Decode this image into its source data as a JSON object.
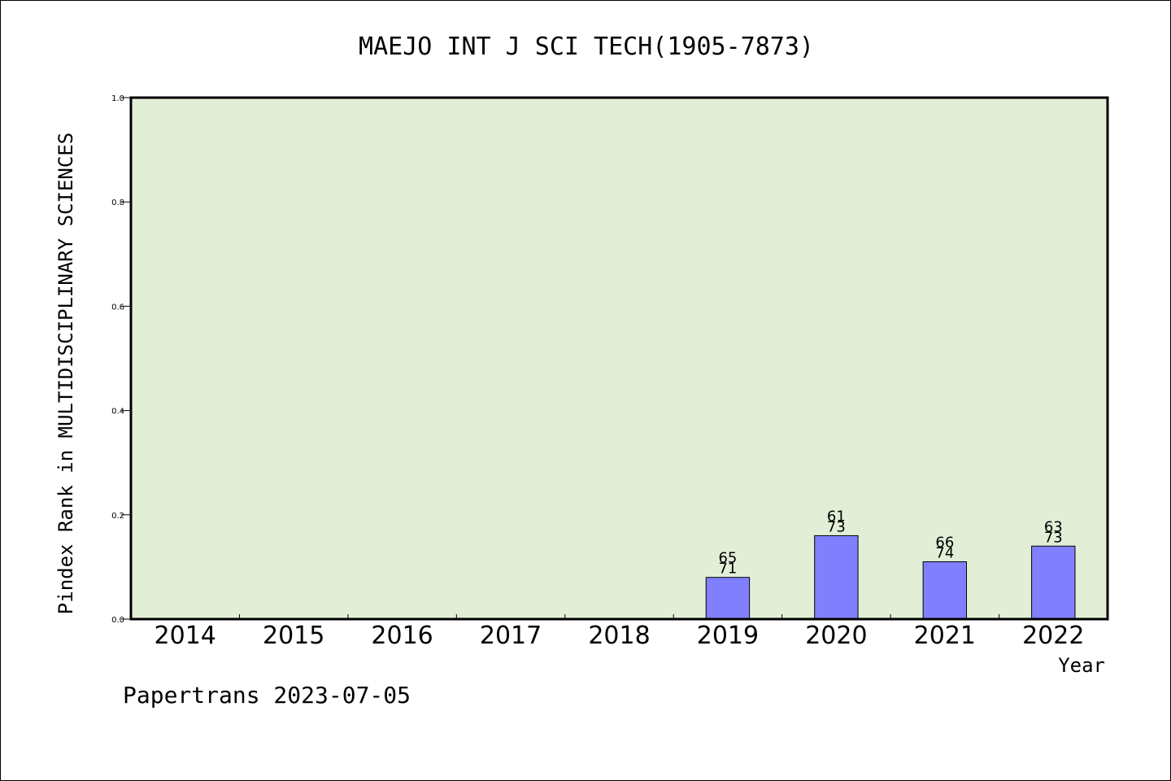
{
  "chart_data": {
    "type": "bar",
    "title": "MAEJO INT J SCI TECH(1905-7873)",
    "xlabel": "Year",
    "ylabel": "Pindex Rank in MULTIDISCIPLINARY SCIENCES",
    "categories": [
      "2014",
      "2015",
      "2016",
      "2017",
      "2018",
      "2019",
      "2020",
      "2021",
      "2022"
    ],
    "values": [
      null,
      null,
      null,
      null,
      null,
      0.08,
      0.16,
      0.11,
      0.14
    ],
    "bar_labels": [
      null,
      null,
      null,
      null,
      null,
      [
        "65",
        "71"
      ],
      [
        "61",
        "73"
      ],
      [
        "66",
        "74"
      ],
      [
        "63",
        "73"
      ]
    ],
    "ylim": [
      0,
      1
    ],
    "yticks": [
      "0.0",
      "0.2",
      "0.4",
      "0.6",
      "0.8",
      "1.0"
    ],
    "grid": false,
    "colors": {
      "plot_bg": "#e2efd6",
      "bar": "#8080ff"
    }
  },
  "footer": {
    "text": "Papertrans 2023-07-05"
  }
}
